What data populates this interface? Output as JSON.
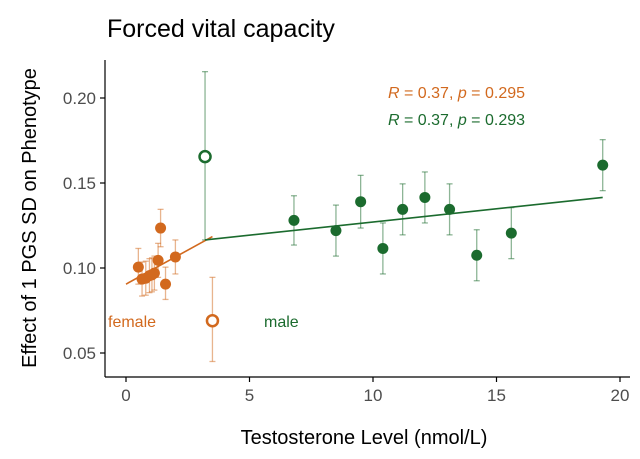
{
  "chart_data": {
    "type": "scatter",
    "title": "Forced vital capacity",
    "xlabel": "Testosterone Level (nmol/L)",
    "ylabel": "Effect of 1 PGS SD on Phenotype",
    "xlim": [
      -0.8,
      20.0
    ],
    "ylim": [
      0.036,
      0.223
    ],
    "xticks": [
      0,
      5,
      10,
      15,
      20
    ],
    "xtick_labels": [
      "0",
      "5",
      "10",
      "15",
      "20"
    ],
    "yticks": [
      0.05,
      0.1,
      0.15,
      0.2
    ],
    "ytick_labels": [
      "0.05",
      "0.10",
      "0.15",
      "0.20"
    ],
    "grid": false,
    "colors": {
      "female": "#D2691E",
      "male": "#1B6B2E"
    },
    "series": [
      {
        "name": "female",
        "color": "#D2691E",
        "label": "female",
        "points": [
          {
            "x": 0.5,
            "y": 0.1005,
            "lo": 0.0905,
            "hi": 0.1115
          },
          {
            "x": 0.65,
            "y": 0.0935,
            "lo": 0.0835,
            "hi": 0.1035
          },
          {
            "x": 0.8,
            "y": 0.094,
            "lo": 0.084,
            "hi": 0.104
          },
          {
            "x": 0.95,
            "y": 0.0955,
            "lo": 0.0855,
            "hi": 0.1055
          },
          {
            "x": 1.05,
            "y": 0.096,
            "lo": 0.086,
            "hi": 0.106
          },
          {
            "x": 1.15,
            "y": 0.097,
            "lo": 0.087,
            "hi": 0.107
          },
          {
            "x": 1.3,
            "y": 0.1045,
            "lo": 0.0945,
            "hi": 0.1145
          },
          {
            "x": 1.4,
            "y": 0.1235,
            "lo": 0.1125,
            "hi": 0.1345
          },
          {
            "x": 1.6,
            "y": 0.0905,
            "lo": 0.0815,
            "hi": 0.1005
          },
          {
            "x": 2.0,
            "y": 0.1065,
            "lo": 0.0965,
            "hi": 0.1165
          }
        ],
        "outlier": {
          "x": 3.5,
          "y": 0.069,
          "lo": 0.045,
          "hi": 0.0945
        },
        "fit": {
          "x": [
            0.0,
            3.5
          ],
          "y": [
            0.0905,
            0.1185
          ]
        },
        "stat_text": [
          "R",
          " = 0.37, ",
          "p",
          " = 0.295"
        ]
      },
      {
        "name": "male",
        "color": "#1B6B2E",
        "label": "male",
        "points": [
          {
            "x": 6.8,
            "y": 0.128,
            "lo": 0.1135,
            "hi": 0.1425
          },
          {
            "x": 8.5,
            "y": 0.122,
            "lo": 0.107,
            "hi": 0.137
          },
          {
            "x": 9.5,
            "y": 0.139,
            "lo": 0.1235,
            "hi": 0.1545
          },
          {
            "x": 10.4,
            "y": 0.1115,
            "lo": 0.0965,
            "hi": 0.1265
          },
          {
            "x": 11.2,
            "y": 0.1345,
            "lo": 0.1195,
            "hi": 0.1495
          },
          {
            "x": 12.1,
            "y": 0.1415,
            "lo": 0.1265,
            "hi": 0.1565
          },
          {
            "x": 13.1,
            "y": 0.1345,
            "lo": 0.1195,
            "hi": 0.1495
          },
          {
            "x": 14.2,
            "y": 0.1075,
            "lo": 0.0925,
            "hi": 0.1225
          },
          {
            "x": 15.6,
            "y": 0.1205,
            "lo": 0.1055,
            "hi": 0.1355
          },
          {
            "x": 19.3,
            "y": 0.1605,
            "lo": 0.1455,
            "hi": 0.1755
          }
        ],
        "outlier": {
          "x": 3.2,
          "y": 0.1655,
          "lo": 0.1165,
          "hi": 0.2155
        },
        "fit": {
          "x": [
            3.2,
            19.3
          ],
          "y": [
            0.1165,
            0.1415
          ]
        },
        "stat_text": [
          "R",
          " = 0.37, ",
          "p",
          " = 0.293"
        ]
      }
    ]
  }
}
